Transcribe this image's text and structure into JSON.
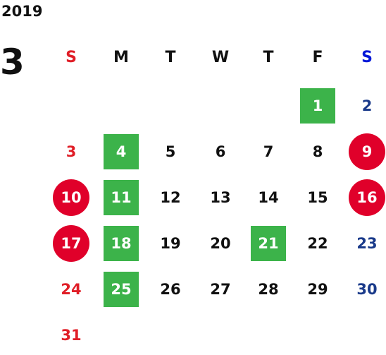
{
  "year": "2019",
  "month": "3",
  "colors": {
    "sunday": "#e01e27",
    "saturday": "#1a3a8a",
    "saturday_header": "#0018d8",
    "weekday": "#111111",
    "green_highlight": "#3cb34a",
    "red_circle": "#e0002a"
  },
  "weekdays": [
    "S",
    "M",
    "T",
    "W",
    "T",
    "F",
    "S"
  ],
  "days": [
    {
      "label": "1",
      "col": 5,
      "row": 0,
      "mark": "green"
    },
    {
      "label": "2",
      "col": 6,
      "row": 0,
      "mark": "none"
    },
    {
      "label": "3",
      "col": 0,
      "row": 1,
      "mark": "none"
    },
    {
      "label": "4",
      "col": 1,
      "row": 1,
      "mark": "green"
    },
    {
      "label": "5",
      "col": 2,
      "row": 1,
      "mark": "none"
    },
    {
      "label": "6",
      "col": 3,
      "row": 1,
      "mark": "none"
    },
    {
      "label": "7",
      "col": 4,
      "row": 1,
      "mark": "none"
    },
    {
      "label": "8",
      "col": 5,
      "row": 1,
      "mark": "none"
    },
    {
      "label": "9",
      "col": 6,
      "row": 1,
      "mark": "red"
    },
    {
      "label": "10",
      "col": 0,
      "row": 2,
      "mark": "red"
    },
    {
      "label": "11",
      "col": 1,
      "row": 2,
      "mark": "green"
    },
    {
      "label": "12",
      "col": 2,
      "row": 2,
      "mark": "none"
    },
    {
      "label": "13",
      "col": 3,
      "row": 2,
      "mark": "none"
    },
    {
      "label": "14",
      "col": 4,
      "row": 2,
      "mark": "none"
    },
    {
      "label": "15",
      "col": 5,
      "row": 2,
      "mark": "none"
    },
    {
      "label": "16",
      "col": 6,
      "row": 2,
      "mark": "red"
    },
    {
      "label": "17",
      "col": 0,
      "row": 3,
      "mark": "red"
    },
    {
      "label": "18",
      "col": 1,
      "row": 3,
      "mark": "green"
    },
    {
      "label": "19",
      "col": 2,
      "row": 3,
      "mark": "none"
    },
    {
      "label": "20",
      "col": 3,
      "row": 3,
      "mark": "none"
    },
    {
      "label": "21",
      "col": 4,
      "row": 3,
      "mark": "green"
    },
    {
      "label": "22",
      "col": 5,
      "row": 3,
      "mark": "none"
    },
    {
      "label": "23",
      "col": 6,
      "row": 3,
      "mark": "none"
    },
    {
      "label": "24",
      "col": 0,
      "row": 4,
      "mark": "none"
    },
    {
      "label": "25",
      "col": 1,
      "row": 4,
      "mark": "green"
    },
    {
      "label": "26",
      "col": 2,
      "row": 4,
      "mark": "none"
    },
    {
      "label": "27",
      "col": 3,
      "row": 4,
      "mark": "none"
    },
    {
      "label": "28",
      "col": 4,
      "row": 4,
      "mark": "none"
    },
    {
      "label": "29",
      "col": 5,
      "row": 4,
      "mark": "none"
    },
    {
      "label": "30",
      "col": 6,
      "row": 4,
      "mark": "none"
    },
    {
      "label": "31",
      "col": 0,
      "row": 5,
      "mark": "none"
    }
  ]
}
